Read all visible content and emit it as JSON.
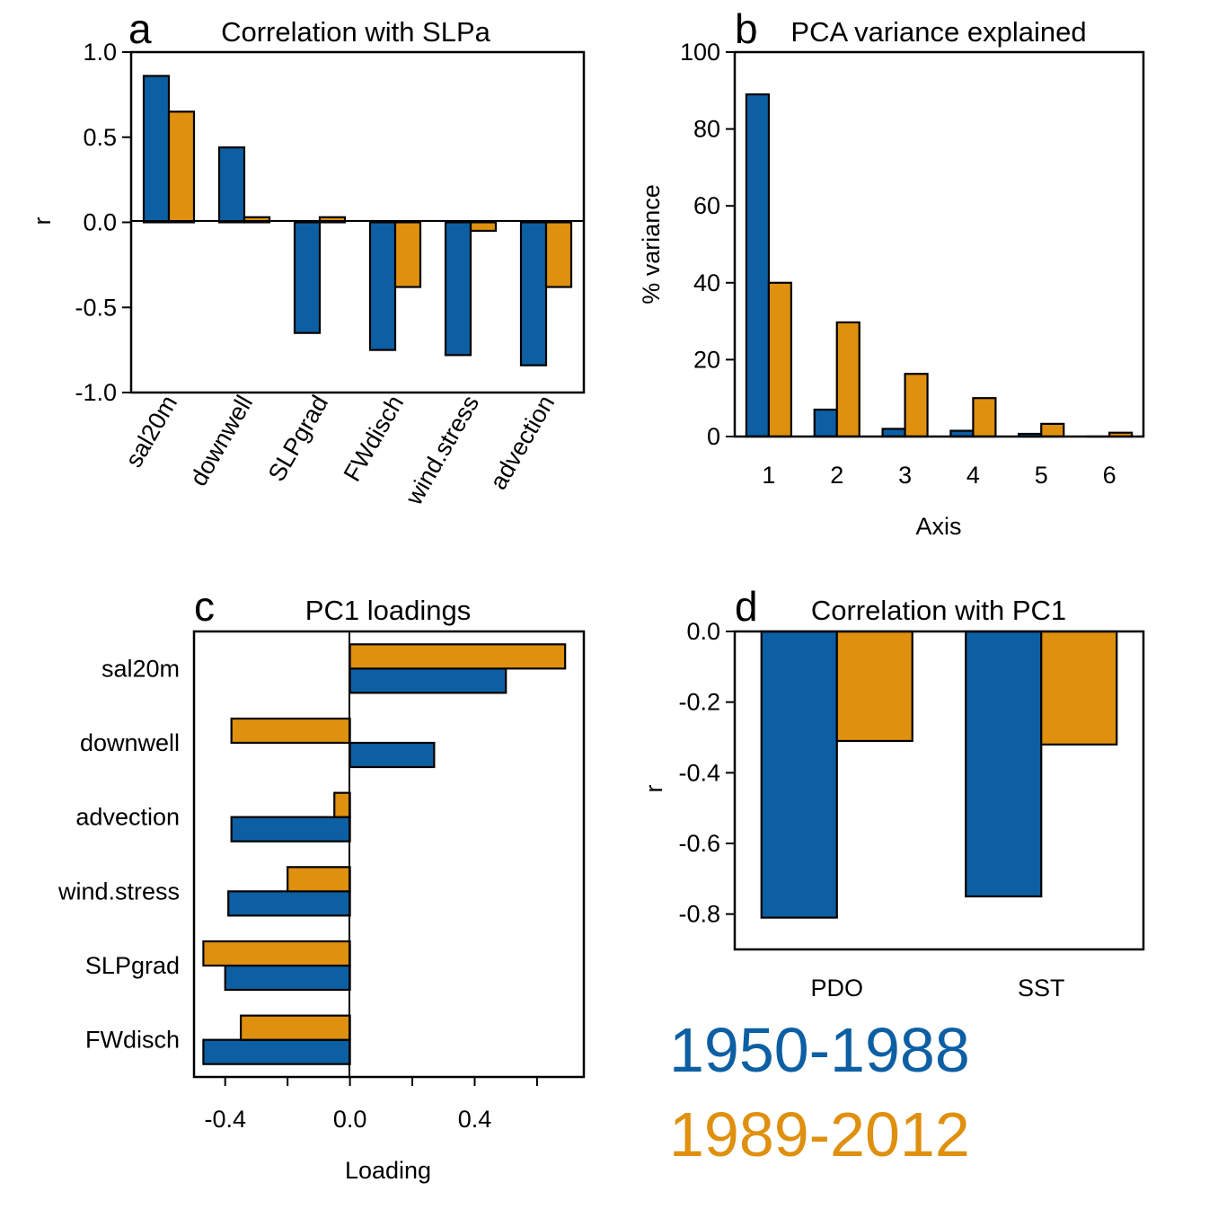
{
  "colors": {
    "series1": "#0d5fa3",
    "series2": "#df900f"
  },
  "legend": {
    "series1": "1950-1988",
    "series2": "1989-2012"
  },
  "chart_data": [
    {
      "panel": "a",
      "type": "bar",
      "title": "Correlation with SLPa",
      "xlabel": "",
      "ylabel": "r",
      "ylim": [
        -1.0,
        1.0
      ],
      "yticks": [
        1.0,
        0.5,
        0.0,
        -0.5,
        -1.0
      ],
      "ytick_labels": [
        "1.0",
        "0.5",
        "0.0",
        "-0.5",
        "-1.0"
      ],
      "categories": [
        "sal20m",
        "downwell",
        "SLPgrad",
        "FWdisch",
        "wind.stress",
        "advection"
      ],
      "series": [
        {
          "values": [
            0.86,
            0.44,
            -0.65,
            -0.75,
            -0.78,
            -0.84
          ]
        },
        {
          "values": [
            0.65,
            0.03,
            0.03,
            -0.38,
            -0.05,
            -0.38
          ]
        }
      ]
    },
    {
      "panel": "b",
      "type": "bar",
      "title": "PCA variance explained",
      "xlabel": "Axis",
      "ylabel": "% variance",
      "ylim": [
        0,
        100
      ],
      "yticks": [
        0,
        20,
        40,
        60,
        80,
        100
      ],
      "ytick_labels": [
        "0",
        "20",
        "40",
        "60",
        "80",
        "100"
      ],
      "categories": [
        "1",
        "2",
        "3",
        "4",
        "5",
        "6"
      ],
      "series": [
        {
          "values": [
            89,
            7,
            2,
            1.5,
            0.7,
            0
          ]
        },
        {
          "values": [
            40,
            29.7,
            16.3,
            10,
            3.3,
            1
          ]
        }
      ]
    },
    {
      "panel": "c",
      "type": "bar",
      "orientation": "horizontal",
      "title": "PC1 loadings",
      "xlabel": "Loading",
      "ylabel": "",
      "xlim": [
        -0.5,
        0.75
      ],
      "xticks": [
        -0.4,
        -0.2,
        0.0,
        0.2,
        0.4,
        0.6
      ],
      "xtick_labels": [
        "-0.4",
        "",
        "0.0",
        "",
        "0.4",
        ""
      ],
      "categories": [
        "sal20m",
        "downwell",
        "advection",
        "wind.stress",
        "SLPgrad",
        "FWdisch"
      ],
      "series": [
        {
          "values": [
            0.5,
            0.27,
            -0.38,
            -0.39,
            -0.4,
            -0.47
          ]
        },
        {
          "values": [
            0.69,
            -0.38,
            -0.05,
            -0.2,
            -0.47,
            -0.35
          ]
        }
      ]
    },
    {
      "panel": "d",
      "type": "bar",
      "title": "Correlation with PC1",
      "xlabel": "",
      "ylabel": "r",
      "ylim": [
        -0.9,
        0.0
      ],
      "yticks": [
        0.0,
        -0.2,
        -0.4,
        -0.6,
        -0.8
      ],
      "ytick_labels": [
        "0.0",
        "-0.2",
        "-0.4",
        "-0.6",
        "-0.8"
      ],
      "categories": [
        "PDO",
        "SST"
      ],
      "series": [
        {
          "values": [
            -0.81,
            -0.75
          ]
        },
        {
          "values": [
            -0.31,
            -0.32
          ]
        }
      ]
    }
  ]
}
